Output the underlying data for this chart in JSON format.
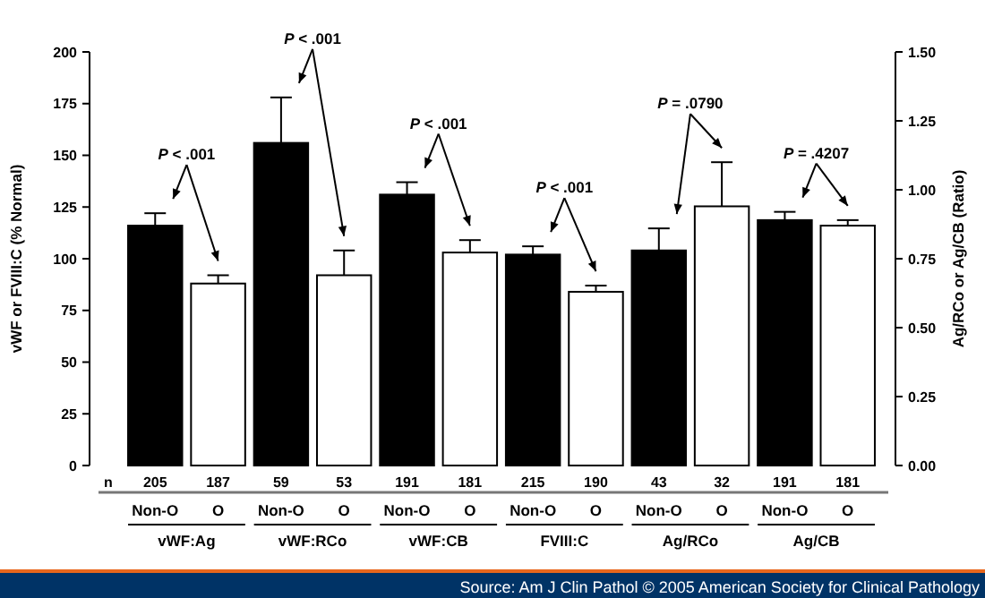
{
  "chart_data": {
    "type": "bar",
    "categories": [
      "Non-O",
      "O",
      "Non-O",
      "O",
      "Non-O",
      "O",
      "Non-O",
      "O",
      "Non-O",
      "O",
      "Non-O",
      "O"
    ],
    "series": [
      {
        "colors": [
          "#000000",
          "#ffffff",
          "#000000",
          "#ffffff",
          "#000000",
          "#ffffff",
          "#000000",
          "#ffffff",
          null,
          null,
          null,
          null
        ],
        "values": [
          116,
          88,
          156,
          92,
          131,
          103,
          102,
          84,
          null,
          null,
          null,
          null
        ],
        "errors": [
          6,
          4,
          22,
          12,
          6,
          6,
          4,
          3,
          null,
          null,
          null,
          null
        ]
      },
      {
        "axis": "y2",
        "colors": [
          null,
          null,
          null,
          null,
          null,
          null,
          null,
          null,
          "#000000",
          "#ffffff",
          "#000000",
          "#ffffff"
        ],
        "values": [
          null,
          null,
          null,
          null,
          null,
          null,
          null,
          null,
          0.78,
          0.94,
          0.89,
          0.87
        ],
        "errors": [
          null,
          null,
          null,
          null,
          null,
          null,
          null,
          null,
          0.08,
          0.16,
          0.03,
          0.02
        ]
      }
    ],
    "ylabel": "vWF or FVIII:C (% Normal)",
    "y2label": "Ag/RCo or Ag/CB (Ratio)",
    "ylim": [
      0,
      200
    ],
    "yticks": [
      0,
      25,
      50,
      75,
      100,
      125,
      150,
      175,
      200
    ],
    "y2lim": [
      0,
      1.5
    ],
    "y2ticks": [
      {
        "value": 0,
        "label": "0.00"
      },
      {
        "value": 0.25,
        "label": "0.25"
      },
      {
        "value": 0.5,
        "label": "0.50"
      },
      {
        "value": 0.75,
        "label": "0.75"
      },
      {
        "value": 1,
        "label": "1.00"
      },
      {
        "value": 1.25,
        "label": "1.25"
      },
      {
        "value": 1.5,
        "label": "1.50"
      }
    ],
    "annotations": [
      "P < .001",
      "P < .001",
      "P < .001",
      "P < .001",
      "P = .0790",
      "P = .4207",
      "n",
      "205",
      "187",
      "59",
      "53",
      "191",
      "181",
      "215",
      "190",
      "43",
      "32",
      "191",
      "181",
      "vWF:Ag",
      "vWF:RCo",
      "vWF:CB",
      "FVIII:C",
      "Ag/RCo",
      "Ag/CB",
      "Source: Am J Clin Pathol © 2005 American Society for Clinical Pathology"
    ]
  }
}
